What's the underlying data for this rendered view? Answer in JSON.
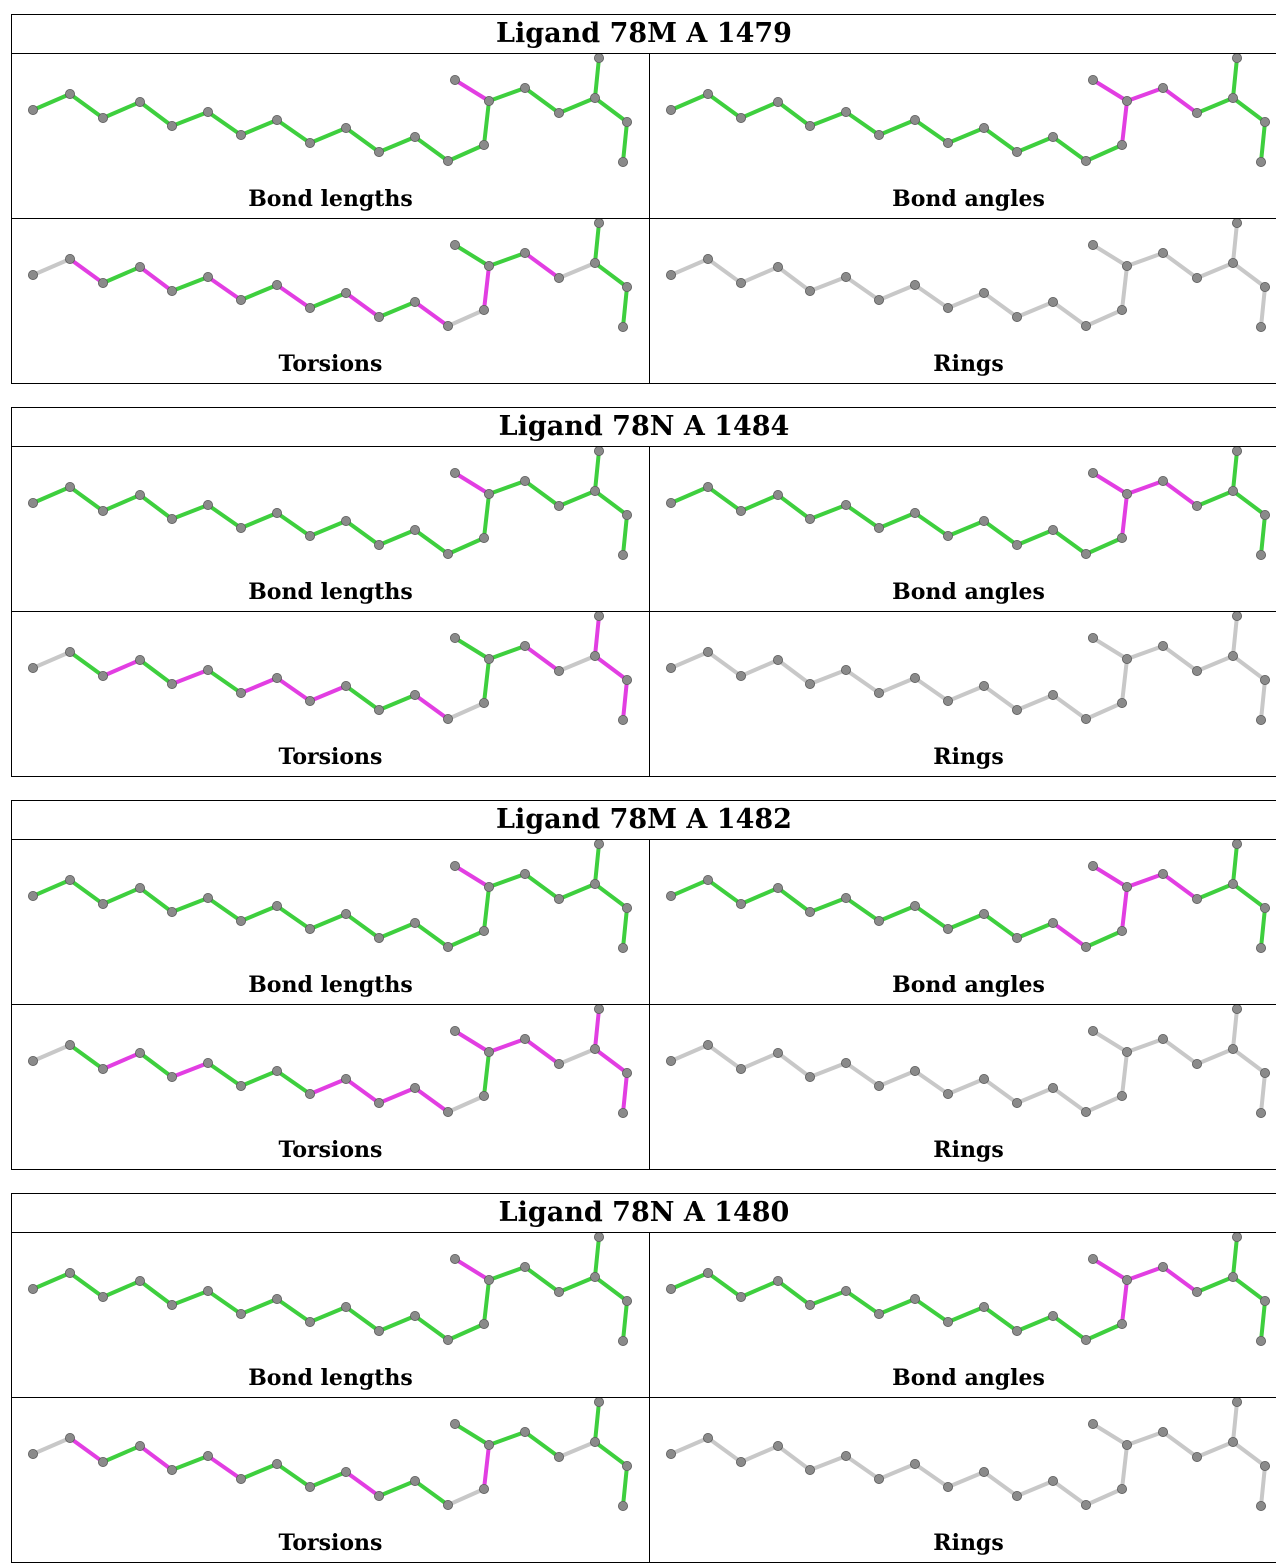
{
  "colors": {
    "ok": "#3ecf3e",
    "outlier": "#e23ee2",
    "neutral": "#c8c8c8",
    "atom": "#8a8a8a",
    "atom_edge": "#5a5a5a"
  },
  "panels": [
    {
      "title": "Ligand 78M A 1479",
      "cells": [
        {
          "label": "Bond lengths",
          "bonds": [
            "g",
            "g",
            "g",
            "g",
            "g",
            "g",
            "g",
            "g",
            "g",
            "g",
            "g",
            "g",
            "g",
            "g",
            "m",
            "g",
            "g",
            "g",
            "g"
          ]
        },
        {
          "label": "Bond angles",
          "bonds": [
            "g",
            "g",
            "g",
            "g",
            "g",
            "g",
            "g",
            "g",
            "g",
            "g",
            "g",
            "g",
            "g",
            "m",
            "m",
            "m",
            "m",
            "g",
            "g"
          ]
        },
        {
          "label": "Torsions",
          "bonds": [
            "n",
            "m",
            "g",
            "m",
            "g",
            "m",
            "g",
            "m",
            "g",
            "m",
            "g",
            "m",
            "n",
            "m",
            "g",
            "g",
            "m",
            "n",
            "g"
          ]
        },
        {
          "label": "Rings",
          "bonds": [
            "n",
            "n",
            "n",
            "n",
            "n",
            "n",
            "n",
            "n",
            "n",
            "n",
            "n",
            "n",
            "n",
            "n",
            "n",
            "n",
            "n",
            "n",
            "n"
          ]
        }
      ]
    },
    {
      "title": "Ligand 78N A 1484",
      "cells": [
        {
          "label": "Bond lengths",
          "bonds": [
            "g",
            "g",
            "g",
            "g",
            "g",
            "g",
            "g",
            "g",
            "g",
            "g",
            "g",
            "g",
            "g",
            "g",
            "m",
            "g",
            "g",
            "g",
            "g"
          ]
        },
        {
          "label": "Bond angles",
          "bonds": [
            "g",
            "g",
            "g",
            "g",
            "g",
            "g",
            "g",
            "g",
            "g",
            "g",
            "g",
            "g",
            "g",
            "m",
            "m",
            "m",
            "m",
            "g",
            "g"
          ]
        },
        {
          "label": "Torsions",
          "bonds": [
            "n",
            "g",
            "m",
            "g",
            "m",
            "g",
            "m",
            "m",
            "m",
            "g",
            "g",
            "m",
            "n",
            "g",
            "g",
            "g",
            "m",
            "n",
            "m"
          ]
        },
        {
          "label": "Rings",
          "bonds": [
            "n",
            "n",
            "n",
            "n",
            "n",
            "n",
            "n",
            "n",
            "n",
            "n",
            "n",
            "n",
            "n",
            "n",
            "n",
            "n",
            "n",
            "n",
            "n"
          ]
        }
      ]
    },
    {
      "title": "Ligand 78M A 1482",
      "cells": [
        {
          "label": "Bond lengths",
          "bonds": [
            "g",
            "g",
            "g",
            "g",
            "g",
            "g",
            "g",
            "g",
            "g",
            "g",
            "g",
            "g",
            "g",
            "g",
            "m",
            "g",
            "g",
            "g",
            "g"
          ]
        },
        {
          "label": "Bond angles",
          "bonds": [
            "g",
            "g",
            "g",
            "g",
            "g",
            "g",
            "g",
            "g",
            "g",
            "g",
            "g",
            "m",
            "g",
            "m",
            "m",
            "m",
            "m",
            "g",
            "g"
          ]
        },
        {
          "label": "Torsions",
          "bonds": [
            "n",
            "g",
            "m",
            "g",
            "m",
            "g",
            "g",
            "g",
            "m",
            "m",
            "m",
            "m",
            "n",
            "g",
            "m",
            "m",
            "m",
            "n",
            "m"
          ]
        },
        {
          "label": "Rings",
          "bonds": [
            "n",
            "n",
            "n",
            "n",
            "n",
            "n",
            "n",
            "n",
            "n",
            "n",
            "n",
            "n",
            "n",
            "n",
            "n",
            "n",
            "n",
            "n",
            "n"
          ]
        }
      ]
    },
    {
      "title": "Ligand 78N A 1480",
      "cells": [
        {
          "label": "Bond lengths",
          "bonds": [
            "g",
            "g",
            "g",
            "g",
            "g",
            "g",
            "g",
            "g",
            "g",
            "g",
            "g",
            "g",
            "g",
            "g",
            "m",
            "g",
            "g",
            "g",
            "g"
          ]
        },
        {
          "label": "Bond angles",
          "bonds": [
            "g",
            "g",
            "g",
            "g",
            "g",
            "g",
            "g",
            "g",
            "g",
            "g",
            "g",
            "g",
            "g",
            "m",
            "m",
            "m",
            "m",
            "g",
            "g"
          ]
        },
        {
          "label": "Torsions",
          "bonds": [
            "n",
            "m",
            "g",
            "m",
            "g",
            "m",
            "g",
            "g",
            "g",
            "m",
            "g",
            "g",
            "n",
            "m",
            "g",
            "g",
            "g",
            "n",
            "g"
          ]
        },
        {
          "label": "Rings",
          "bonds": [
            "n",
            "n",
            "n",
            "n",
            "n",
            "n",
            "n",
            "n",
            "n",
            "n",
            "n",
            "n",
            "n",
            "n",
            "n",
            "n",
            "n",
            "n",
            "n"
          ]
        }
      ]
    }
  ]
}
